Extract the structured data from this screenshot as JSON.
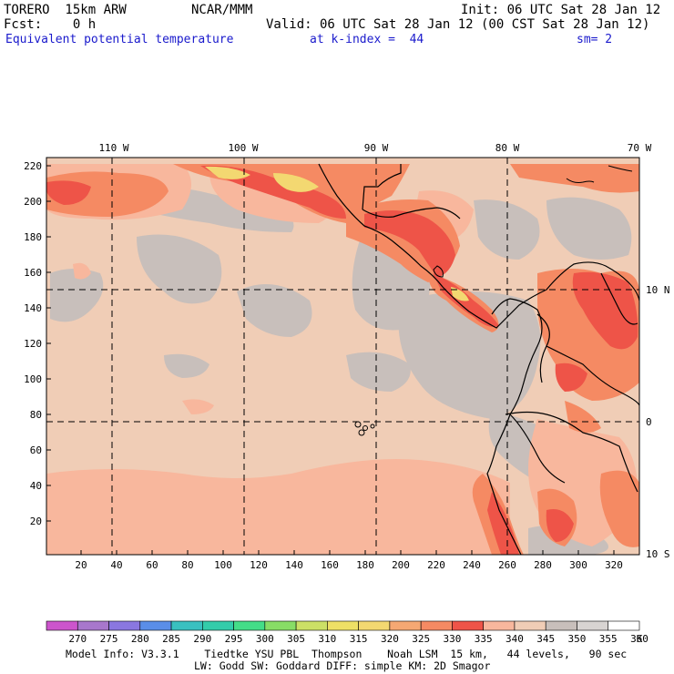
{
  "header": {
    "model": "TORERO  15km ARW",
    "org": "NCAR/MMM",
    "init": "Init: 06 UTC Sat 28 Jan 12",
    "fcst": "Fcst:    0 h",
    "valid": "Valid: 06 UTC Sat 28 Jan 12 (00 CST Sat 28 Jan 12)",
    "field": "Equivalent potential temperature",
    "level": "at k-index =  44",
    "smoothing": "sm= 2"
  },
  "map": {
    "lon_labels": [
      "110 W",
      "100 W",
      "90 W",
      "80 W",
      "70 W"
    ],
    "lat_labels": [
      "10 N",
      "0",
      "10 S"
    ],
    "y_ticks": [
      "220",
      "200",
      "180",
      "160",
      "140",
      "120",
      "100",
      "80",
      "60",
      "40",
      "20"
    ],
    "x_ticks": [
      "20",
      "40",
      "60",
      "80",
      "100",
      "120",
      "140",
      "160",
      "180",
      "200",
      "220",
      "240",
      "260",
      "280",
      "300",
      "320"
    ],
    "colors": {
      "ocean": "#f0cdb6",
      "gray": "#c8bfbb",
      "salmon": "#f8b79d",
      "orange": "#f58a63",
      "red": "#ee5448",
      "yellow": "#f3d871"
    }
  },
  "colorbar": {
    "labels": [
      "270",
      "275",
      "280",
      "285",
      "290",
      "295",
      "300",
      "305",
      "310",
      "315",
      "320",
      "325",
      "330",
      "335",
      "340",
      "345",
      "350",
      "355",
      "360"
    ],
    "unit": "K",
    "colors": [
      "#cc55cc",
      "#a877cc",
      "#8a77e0",
      "#5a8ee8",
      "#3ac0c0",
      "#33ccaa",
      "#44dd88",
      "#88dd66",
      "#cce066",
      "#eee066",
      "#f3d871",
      "#f5a873",
      "#f58a63",
      "#ee5448",
      "#f8b79d",
      "#f0cdb6",
      "#c8bfbb",
      "#d8d4d2",
      "#ffffff"
    ]
  },
  "footer": {
    "line1": "Model Info: V3.3.1    Tiedtke YSU PBL  Thompson    Noah LSM  15 km,   44 levels,   90 sec",
    "line2": "LW: Godd SW: Goddard DIFF: simple KM: 2D Smagor"
  }
}
